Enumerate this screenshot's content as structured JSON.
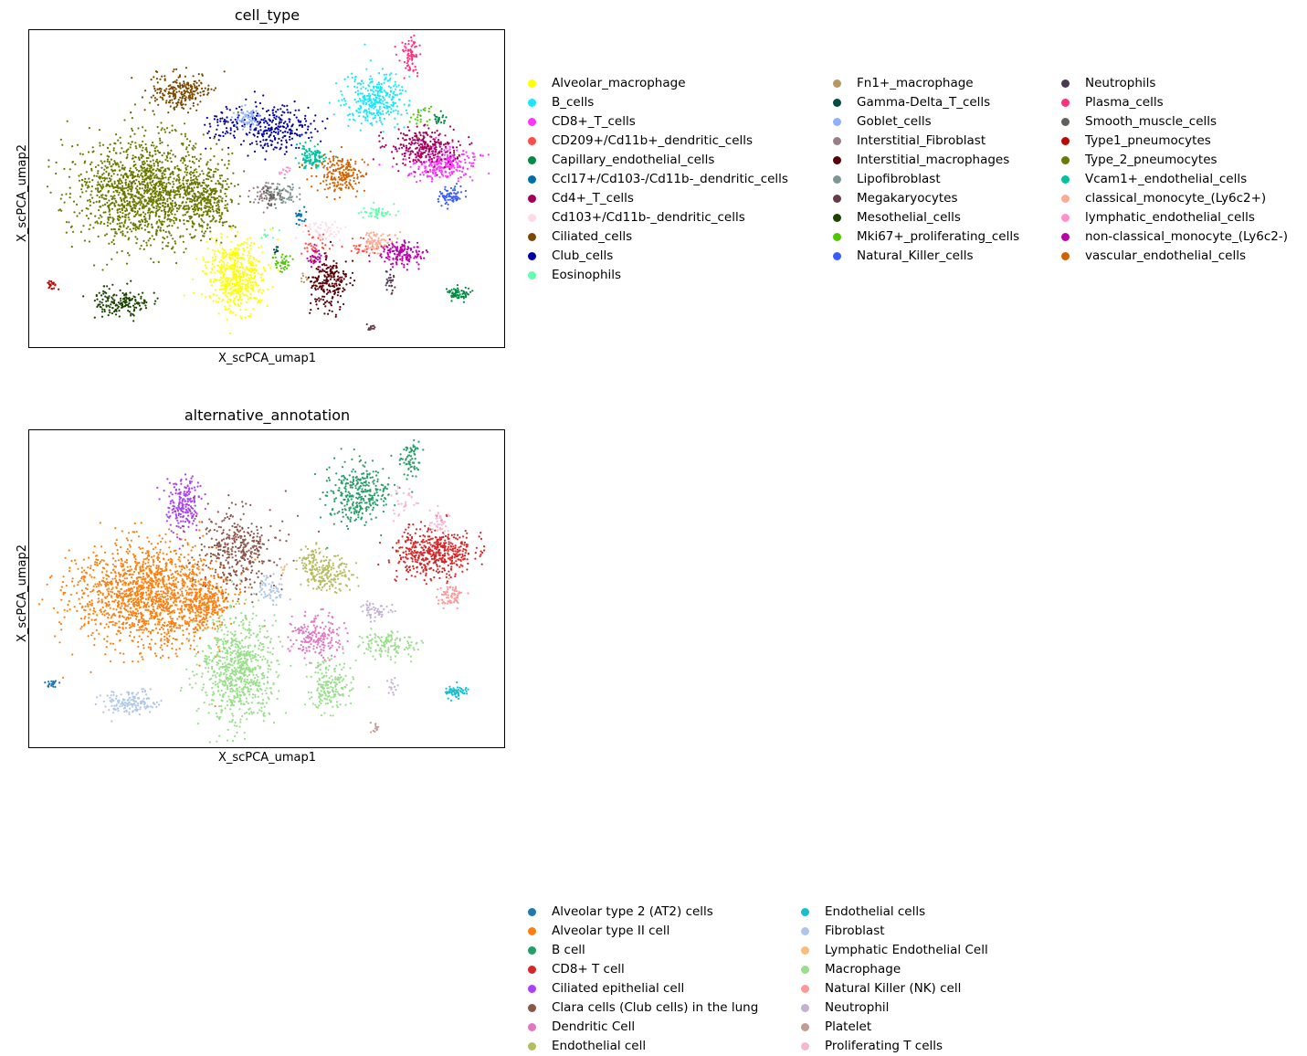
{
  "chart_data": [
    {
      "type": "scatter",
      "title": "cell_type",
      "xlabel": "X_scPCA_umap1",
      "ylabel": "X_scPCA_umap2",
      "grid": false,
      "ticks": false,
      "legend_placement": "right, 3 columns",
      "series": [
        {
          "name": "Alveolar_macrophage",
          "color": "#ffff00"
        },
        {
          "name": "B_cells",
          "color": "#1ce6ff"
        },
        {
          "name": "CD8+_T_cells",
          "color": "#ff34ff"
        },
        {
          "name": "CD209+/Cd11b+_dendritic_cells",
          "color": "#ff4a46"
        },
        {
          "name": "Capillary_endothelial_cells",
          "color": "#008941"
        },
        {
          "name": "Ccl17+/Cd103-/Cd11b-_dendritic_cells",
          "color": "#006fa6"
        },
        {
          "name": "Cd4+_T_cells",
          "color": "#a30059"
        },
        {
          "name": "Cd103+/Cd11b-_dendritic_cells",
          "color": "#ffdbe5"
        },
        {
          "name": "Ciliated_cells",
          "color": "#7a4900"
        },
        {
          "name": "Club_cells",
          "color": "#0000a6"
        },
        {
          "name": "Eosinophils",
          "color": "#63ffac"
        },
        {
          "name": "Fn1+_macrophage",
          "color": "#b79762"
        },
        {
          "name": "Gamma-Delta_T_cells",
          "color": "#004d43"
        },
        {
          "name": "Goblet_cells",
          "color": "#8fb0ff"
        },
        {
          "name": "Interstitial_Fibroblast",
          "color": "#997d87"
        },
        {
          "name": "Interstitial_macrophages",
          "color": "#5a0007"
        },
        {
          "name": "Lipofibroblast",
          "color": "#809693"
        },
        {
          "name": "Megakaryocytes",
          "color": "#6a3a4c"
        },
        {
          "name": "Mesothelial_cells",
          "color": "#1b4400"
        },
        {
          "name": "Mki67+_proliferating_cells",
          "color": "#4fc601"
        },
        {
          "name": "Natural_Killer_cells",
          "color": "#3b5dff"
        },
        {
          "name": "Neutrophils",
          "color": "#4a3b53"
        },
        {
          "name": "Plasma_cells",
          "color": "#ff2f80"
        },
        {
          "name": "Smooth_muscle_cells",
          "color": "#61615a"
        },
        {
          "name": "Type1_pneumocytes",
          "color": "#ba0900"
        },
        {
          "name": "Type_2_pneumocytes",
          "color": "#6b7900"
        },
        {
          "name": "Vcam1+_endothelial_cells",
          "color": "#00c2a0"
        },
        {
          "name": "classical_monocyte_(Ly6c2+)",
          "color": "#ffaa92"
        },
        {
          "name": "lymphatic_endothelial_cells",
          "color": "#ff90c9"
        },
        {
          "name": "non-classical_monocyte_(Ly6c2-)",
          "color": "#b903aa"
        },
        {
          "name": "vascular_endothelial_cells",
          "color": "#d16100"
        }
      ]
    },
    {
      "type": "scatter",
      "title": "alternative_annotation",
      "xlabel": "X_scPCA_umap1",
      "ylabel": "X_scPCA_umap2",
      "grid": false,
      "ticks": false,
      "legend_placement": "right, 2 columns",
      "series": [
        {
          "name": "Alveolar type 2 (AT2) cells",
          "color": "#1f77b4"
        },
        {
          "name": "Alveolar type II cell",
          "color": "#ff7f0e"
        },
        {
          "name": "B cell",
          "color": "#279e68"
        },
        {
          "name": "CD8+ T cell",
          "color": "#d62728"
        },
        {
          "name": "Ciliated epithelial cell",
          "color": "#aa40fc"
        },
        {
          "name": "Clara cells (Club cells) in the lung",
          "color": "#8c564b"
        },
        {
          "name": "Dendritic Cell",
          "color": "#e377c2"
        },
        {
          "name": "Endothelial cell",
          "color": "#b5bd61"
        },
        {
          "name": "Endothelial cells",
          "color": "#17becf"
        },
        {
          "name": "Fibroblast",
          "color": "#aec7e8"
        },
        {
          "name": "Lymphatic Endothelial Cell",
          "color": "#ffbb78"
        },
        {
          "name": "Macrophage",
          "color": "#98df8a"
        },
        {
          "name": "Natural Killer (NK) cell",
          "color": "#ff9896"
        },
        {
          "name": "Neutrophil",
          "color": "#c5b0d5"
        },
        {
          "name": "Platelet",
          "color": "#c49c94"
        },
        {
          "name": "Proliferating T cells",
          "color": "#f7b6d2"
        }
      ]
    }
  ]
}
